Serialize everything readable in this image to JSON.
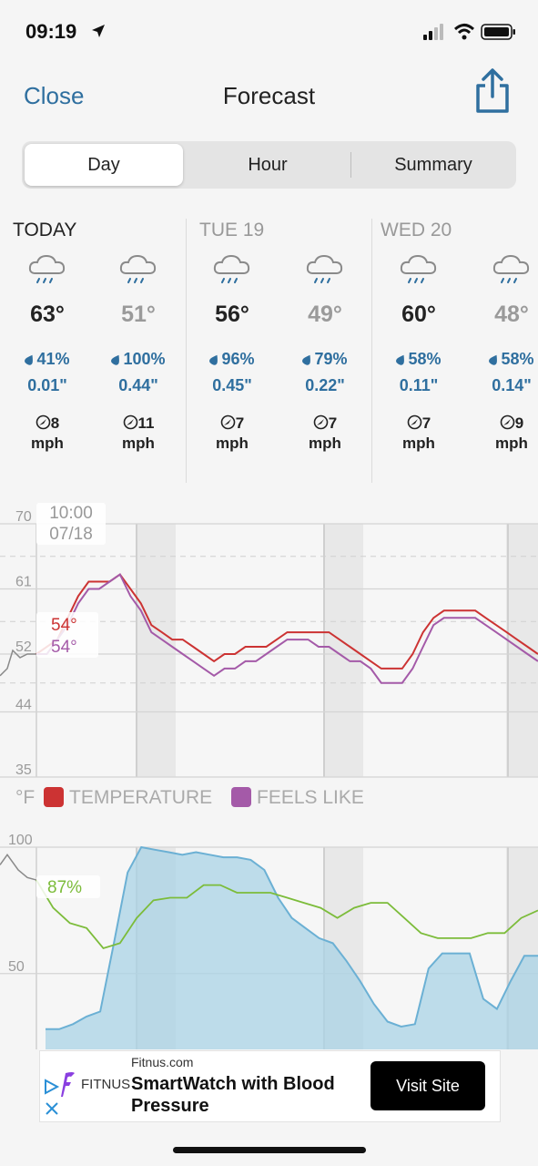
{
  "status_bar": {
    "time": "09:19"
  },
  "nav": {
    "close_label": "Close",
    "title": "Forecast"
  },
  "tabs": [
    {
      "label": "Day",
      "active": true
    },
    {
      "label": "Hour",
      "active": false
    },
    {
      "label": "Summary",
      "active": false
    }
  ],
  "days": [
    {
      "label": "TODAY",
      "periods": [
        {
          "temp": "63°",
          "chance": "41%",
          "amount": "0.01\"",
          "wind_speed": "8",
          "wind_unit": "mph",
          "muted": false
        },
        {
          "temp": "51°",
          "chance": "100%",
          "amount": "0.44\"",
          "wind_speed": "11",
          "wind_unit": "mph",
          "muted": true
        }
      ]
    },
    {
      "label": "TUE 19",
      "periods": [
        {
          "temp": "56°",
          "chance": "96%",
          "amount": "0.45\"",
          "wind_speed": "7",
          "wind_unit": "mph",
          "muted": false
        },
        {
          "temp": "49°",
          "chance": "79%",
          "amount": "0.22\"",
          "wind_speed": "7",
          "wind_unit": "mph",
          "muted": true
        }
      ]
    },
    {
      "label": "WED 20",
      "periods": [
        {
          "temp": "60°",
          "chance": "58%",
          "amount": "0.11\"",
          "wind_speed": "7",
          "wind_unit": "mph",
          "muted": false
        },
        {
          "temp": "48°",
          "chance": "58%",
          "amount": "0.14\"",
          "wind_speed": "9",
          "wind_unit": "mph",
          "muted": true
        }
      ]
    }
  ],
  "chart_data": [
    {
      "type": "line",
      "y_ticks": [
        "70",
        "61",
        "52",
        "44",
        "35"
      ],
      "ylim": [
        35,
        70
      ],
      "unit_label": "°F",
      "cursor": {
        "time": "10:00",
        "date": "07/18"
      },
      "readouts": {
        "temperature": "54°",
        "feels_like": "54°"
      },
      "legend": [
        "TEMPERATURE",
        "FEELS LIKE"
      ],
      "series": [
        {
          "name": "TEMPERATURE",
          "color": "#cc3333",
          "values": [
            52,
            53,
            54,
            57,
            60,
            62,
            62,
            62,
            63,
            61,
            59,
            56,
            55,
            54,
            54,
            53,
            52,
            51,
            52,
            52,
            53,
            53,
            53,
            54,
            55,
            55,
            55,
            55,
            55,
            54,
            53,
            52,
            51,
            50,
            50,
            50,
            52,
            55,
            57,
            58,
            58,
            58,
            58,
            57,
            56,
            55,
            54,
            53,
            52
          ]
        },
        {
          "name": "FEELS LIKE",
          "color": "#a45aa8",
          "values": [
            52,
            52,
            54,
            56,
            59,
            61,
            61,
            62,
            63,
            60,
            58,
            55,
            54,
            53,
            52,
            51,
            50,
            49,
            50,
            50,
            51,
            51,
            52,
            53,
            54,
            54,
            54,
            53,
            53,
            52,
            51,
            51,
            50,
            48,
            48,
            48,
            50,
            53,
            56,
            57,
            57,
            57,
            57,
            56,
            55,
            54,
            53,
            52,
            51
          ]
        }
      ]
    },
    {
      "type": "area",
      "y_ticks": [
        "100",
        "50"
      ],
      "ylim": [
        20,
        100
      ],
      "readouts": {
        "humidity": "87%"
      },
      "series": [
        {
          "name": "",
          "color": "#6bb0d4",
          "fill": "#a9d3e6",
          "values": [
            28,
            28,
            30,
            33,
            35,
            62,
            90,
            100,
            99,
            98,
            97,
            98,
            97,
            96,
            96,
            95,
            91,
            80,
            72,
            68,
            64,
            62,
            55,
            47,
            38,
            31,
            29,
            30,
            52,
            58,
            58,
            58,
            40,
            36,
            47,
            57,
            57
          ]
        },
        {
          "name": "",
          "color": "#7cbc3a",
          "values": [
            87,
            76,
            70,
            68,
            60,
            62,
            72,
            79,
            80,
            80,
            85,
            85,
            82,
            82,
            82,
            80,
            78,
            76,
            72,
            76,
            78,
            78,
            72,
            66,
            64,
            64,
            64,
            66,
            66,
            72,
            75
          ]
        }
      ]
    }
  ],
  "ad": {
    "domain": "Fitnus.com",
    "brand": "FITNUS",
    "headline": "SmartWatch with Blood Pressure",
    "button": "Visit Site"
  },
  "colors": {
    "accent": "#2f6f9f",
    "temperature": "#cc3333",
    "feels_like": "#a45aa8",
    "humidity": "#7cbc3a",
    "precip": "#6bb0d4"
  }
}
